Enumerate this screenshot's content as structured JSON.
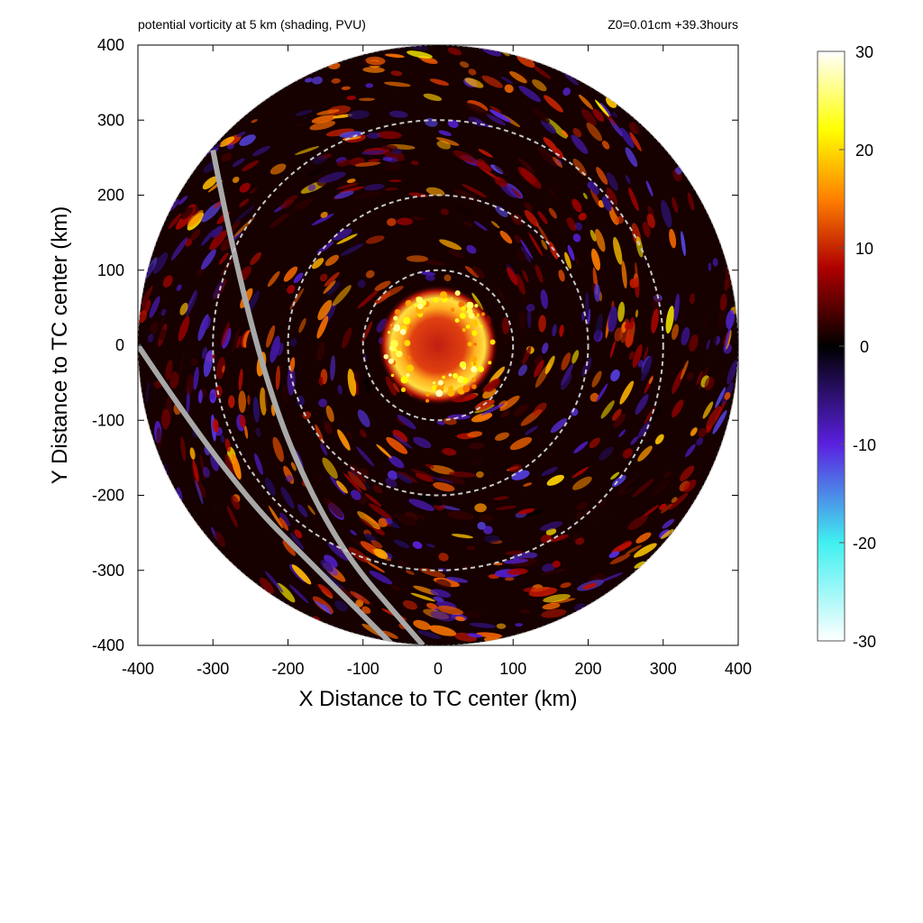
{
  "header": {
    "left": "potential vorticity at 5 km (shading, PVU)",
    "right": "Z0=0.01cm  +39.3hours"
  },
  "chart_data": {
    "type": "heatmap",
    "title": "potential vorticity at 5 km (shading, PVU)",
    "annotation": "Z0=0.01cm  +39.3hours",
    "xlabel": "X Distance to TC center (km)",
    "ylabel": "Y Distance to TC center (km)",
    "xlim": [
      -400,
      400
    ],
    "ylim": [
      -400,
      400
    ],
    "xticks": [
      -400,
      -300,
      -200,
      -100,
      0,
      100,
      200,
      300,
      400
    ],
    "yticks": [
      -400,
      -300,
      -200,
      -100,
      0,
      100,
      200,
      300,
      400
    ],
    "field_domain_radius_km": 400,
    "reference_circles_km": [
      100,
      200,
      300
    ],
    "reference_circle_color": "#c8c8c8",
    "colorbar": {
      "range": [
        -30,
        30
      ],
      "ticks": [
        30,
        20,
        10,
        0,
        -10,
        -20,
        -30
      ],
      "stops": [
        {
          "value": -30,
          "color": "#ffffff"
        },
        {
          "value": -20,
          "color": "#40f0f0"
        },
        {
          "value": -10,
          "color": "#5a20e0"
        },
        {
          "value": 0,
          "color": "#000000"
        },
        {
          "value": 8,
          "color": "#b00000"
        },
        {
          "value": 15,
          "color": "#ff8000"
        },
        {
          "value": 22,
          "color": "#ffff00"
        },
        {
          "value": 30,
          "color": "#ffffff"
        }
      ]
    },
    "features": {
      "eye_center_km": [
        0,
        0
      ],
      "eyewall_radius_km": [
        40,
        80
      ],
      "eyewall_pv_pvu": 22,
      "eye_pv_pvu": 10,
      "background_pv_pvu": 1
    },
    "gray_lines": [
      {
        "name": "track-line-a",
        "points_km": [
          [
            -300,
            260
          ],
          [
            -250,
            0
          ],
          [
            -150,
            -250
          ],
          [
            -20,
            -400
          ]
        ]
      },
      {
        "name": "track-line-b",
        "points_km": [
          [
            -400,
            0
          ],
          [
            -280,
            -180
          ],
          [
            -150,
            -310
          ],
          [
            -60,
            -400
          ]
        ]
      }
    ]
  }
}
